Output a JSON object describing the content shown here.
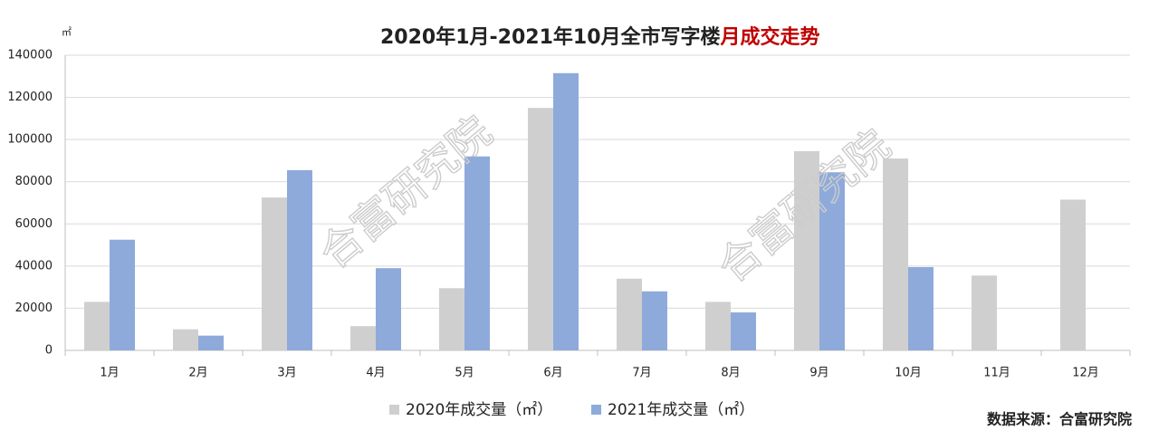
{
  "chart_data": {
    "type": "bar",
    "title": "2020年1月-2021年10月全市写字楼",
    "title_emphasis": "月成交走势",
    "y_unit": "㎡",
    "source": "数据来源：合富研究院",
    "watermark": "合富研究院",
    "categories": [
      "1月",
      "2月",
      "3月",
      "4月",
      "5月",
      "6月",
      "7月",
      "8月",
      "9月",
      "10月",
      "11月",
      "12月"
    ],
    "series": [
      {
        "name": "2020年成交量（㎡）",
        "color": "#d0cfcf",
        "values": [
          23000,
          10000,
          72500,
          11500,
          29500,
          115000,
          34000,
          23000,
          94500,
          91000,
          35500,
          71500
        ]
      },
      {
        "name": "2021年成交量（㎡）",
        "color": "#8eaadb",
        "values": [
          52500,
          7000,
          85500,
          39000,
          92000,
          131500,
          28000,
          18000,
          84500,
          39500,
          null,
          null
        ]
      }
    ],
    "ylim": [
      0,
      140000
    ],
    "yticks": [
      0,
      20000,
      40000,
      60000,
      80000,
      100000,
      120000,
      140000
    ],
    "grid": true
  }
}
